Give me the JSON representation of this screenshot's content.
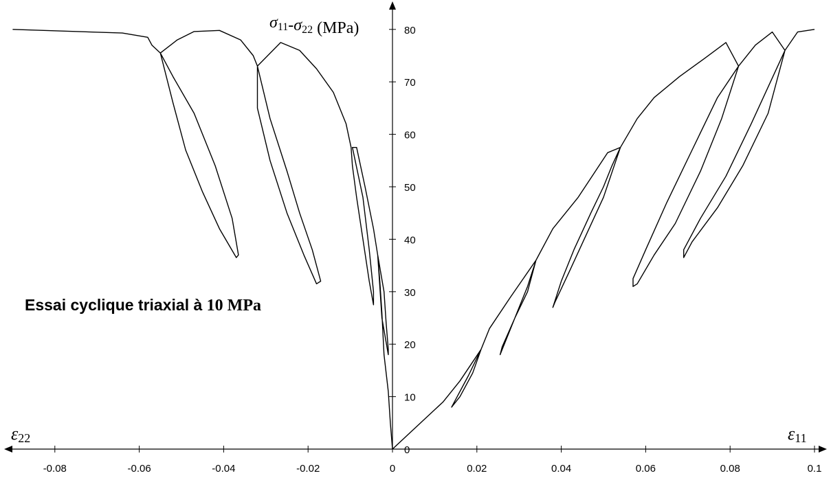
{
  "chart_data": {
    "type": "line",
    "annotation": {
      "text_sans": "Essai cyclique triaxial à ",
      "text_serif": "10 MPa"
    },
    "y_axis": {
      "label_parts": [
        {
          "text": "σ",
          "italic": true
        },
        {
          "text": "11",
          "sub": true
        },
        {
          "text": "-"
        },
        {
          "text": "σ",
          "italic": true
        },
        {
          "text": "22",
          "sub": true
        },
        {
          "text": " (MPa)"
        }
      ],
      "range": [
        0,
        80
      ],
      "ticks": [
        0,
        10,
        20,
        30,
        40,
        50,
        60,
        70,
        80
      ]
    },
    "x_axis": {
      "range": [
        -0.09,
        0.1
      ],
      "ticks": [
        -0.08,
        -0.06,
        -0.04,
        -0.02,
        0,
        0.02,
        0.04,
        0.06,
        0.08,
        0.1
      ],
      "tick_labels": [
        "-0.08",
        "-0.06",
        "-0.04",
        "-0.02",
        "0",
        "0.02",
        "0.04",
        "0.06",
        "0.08",
        "0.1"
      ],
      "label_left_parts": [
        {
          "text": "ε",
          "italic": true
        },
        {
          "text": "22",
          "sub": true
        }
      ],
      "label_right_parts": [
        {
          "text": "ε",
          "italic": true
        },
        {
          "text": "11",
          "sub": true
        }
      ]
    },
    "grid": false,
    "series": [
      {
        "points": [
          [
            0,
            0
          ],
          [
            0.006,
            4.5
          ],
          [
            0.012,
            9
          ],
          [
            0.016,
            13
          ],
          [
            0.021,
            19
          ],
          [
            0.018,
            14
          ],
          [
            0.015,
            9.5
          ],
          [
            0.014,
            8
          ],
          [
            0.016,
            10
          ],
          [
            0.019,
            14.5
          ],
          [
            0.021,
            19
          ],
          [
            0.023,
            23
          ],
          [
            0.028,
            29
          ],
          [
            0.034,
            36
          ],
          [
            0.032,
            30
          ],
          [
            0.029,
            25
          ],
          [
            0.026,
            19.5
          ],
          [
            0.0255,
            18
          ],
          [
            0.027,
            21
          ],
          [
            0.03,
            27
          ],
          [
            0.032,
            31
          ],
          [
            0.034,
            36
          ],
          [
            0.038,
            42
          ],
          [
            0.044,
            48
          ],
          [
            0.051,
            56.5
          ],
          [
            0.054,
            57.5
          ],
          [
            0.05,
            48
          ],
          [
            0.046,
            41
          ],
          [
            0.042,
            34
          ],
          [
            0.0385,
            28
          ],
          [
            0.038,
            27
          ],
          [
            0.04,
            32
          ],
          [
            0.043,
            38
          ],
          [
            0.047,
            45
          ],
          [
            0.05,
            50
          ],
          [
            0.052,
            54
          ],
          [
            0.054,
            57.5
          ],
          [
            0.058,
            63
          ],
          [
            0.062,
            67
          ],
          [
            0.068,
            71
          ],
          [
            0.074,
            74.5
          ],
          [
            0.079,
            77.5
          ],
          [
            0.082,
            73
          ],
          [
            0.078,
            63
          ],
          [
            0.073,
            53
          ],
          [
            0.067,
            43
          ],
          [
            0.062,
            37
          ],
          [
            0.058,
            31.5
          ],
          [
            0.057,
            31
          ],
          [
            0.057,
            32.5
          ],
          [
            0.06,
            38
          ],
          [
            0.065,
            47
          ],
          [
            0.071,
            57
          ],
          [
            0.077,
            67
          ],
          [
            0.082,
            73
          ],
          [
            0.086,
            77
          ],
          [
            0.09,
            79.5
          ],
          [
            0.093,
            76
          ],
          [
            0.089,
            64
          ],
          [
            0.083,
            54
          ],
          [
            0.077,
            46
          ],
          [
            0.071,
            39.5
          ],
          [
            0.069,
            36.5
          ],
          [
            0.069,
            38
          ],
          [
            0.073,
            44
          ],
          [
            0.079,
            52
          ],
          [
            0.085,
            62
          ],
          [
            0.093,
            76
          ],
          [
            0.096,
            79.5
          ],
          [
            0.1,
            80
          ]
        ]
      },
      {
        "points": [
          [
            0,
            0
          ],
          [
            -0.0005,
            5
          ],
          [
            -0.001,
            11
          ],
          [
            -0.002,
            18
          ],
          [
            -0.0025,
            26
          ],
          [
            -0.003,
            32
          ],
          [
            -0.0035,
            37
          ],
          [
            -0.002,
            30
          ],
          [
            -0.0015,
            24
          ],
          [
            -0.001,
            19
          ],
          [
            -0.001,
            18
          ],
          [
            -0.0025,
            25
          ],
          [
            -0.003,
            31
          ],
          [
            -0.0035,
            37
          ],
          [
            -0.0045,
            42
          ],
          [
            -0.0065,
            50
          ],
          [
            -0.0085,
            57.5
          ],
          [
            -0.0095,
            57.5
          ],
          [
            -0.007,
            48
          ],
          [
            -0.0055,
            38
          ],
          [
            -0.0045,
            30
          ],
          [
            -0.0045,
            27.5
          ],
          [
            -0.0055,
            32
          ],
          [
            -0.007,
            40
          ],
          [
            -0.0085,
            48
          ],
          [
            -0.0095,
            54
          ],
          [
            -0.0098,
            57.5
          ],
          [
            -0.011,
            62
          ],
          [
            -0.014,
            68
          ],
          [
            -0.018,
            72.5
          ],
          [
            -0.022,
            76
          ],
          [
            -0.0265,
            77.5
          ],
          [
            -0.032,
            73
          ],
          [
            -0.029,
            63
          ],
          [
            -0.025,
            53
          ],
          [
            -0.022,
            45
          ],
          [
            -0.019,
            38
          ],
          [
            -0.017,
            32
          ],
          [
            -0.018,
            31.5
          ],
          [
            -0.021,
            37
          ],
          [
            -0.025,
            45
          ],
          [
            -0.029,
            55
          ],
          [
            -0.032,
            65
          ],
          [
            -0.032,
            73
          ],
          [
            -0.033,
            75
          ],
          [
            -0.036,
            78
          ],
          [
            -0.041,
            79.8
          ],
          [
            -0.047,
            79.6
          ],
          [
            -0.051,
            78
          ],
          [
            -0.055,
            75.5
          ],
          [
            -0.052,
            66
          ],
          [
            -0.049,
            57
          ],
          [
            -0.045,
            49
          ],
          [
            -0.041,
            42
          ],
          [
            -0.037,
            36.5
          ],
          [
            -0.0365,
            37
          ],
          [
            -0.038,
            44
          ],
          [
            -0.042,
            54
          ],
          [
            -0.047,
            64
          ],
          [
            -0.052,
            71
          ],
          [
            -0.055,
            75.5
          ],
          [
            -0.057,
            77
          ],
          [
            -0.058,
            78.5
          ],
          [
            -0.064,
            79.3
          ],
          [
            -0.09,
            80
          ]
        ]
      }
    ]
  }
}
